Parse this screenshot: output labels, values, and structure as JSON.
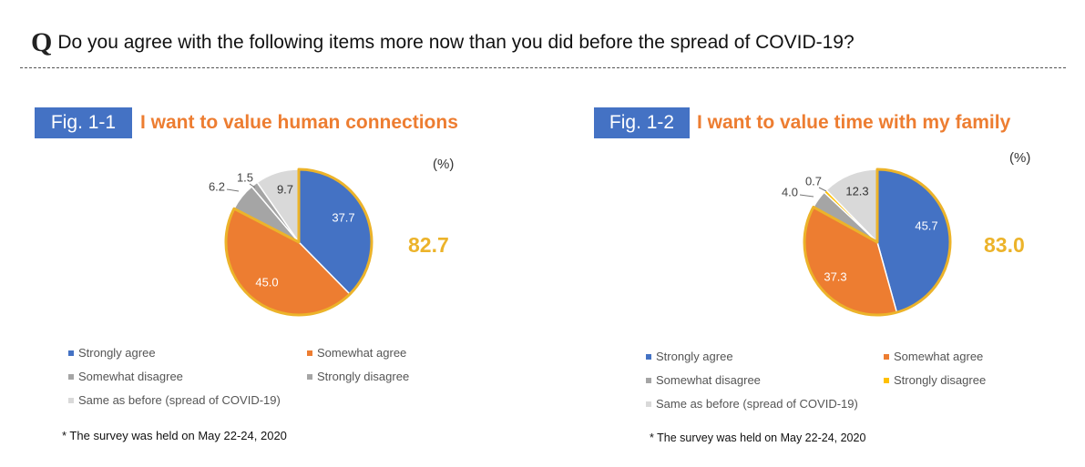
{
  "question": {
    "mark": "Q",
    "text": "Do you agree with the following items more now than you did before the spread of COVID-19?"
  },
  "note": "* The survey was held on May 22-24, 2020",
  "unit": "(%)",
  "legend": [
    {
      "label": "Strongly agree",
      "color": "#4472c4"
    },
    {
      "label": "Somewhat agree",
      "color": "#ed7d31"
    },
    {
      "label": "Somewhat disagree",
      "color": "#a5a5a5"
    },
    {
      "label": "Strongly disagree",
      "color": "#a5a5a5"
    },
    {
      "label": "Same as before (spread of COVID-19)",
      "color": "#d9d9d9"
    }
  ],
  "legend2": [
    {
      "label": "Strongly agree",
      "color": "#4472c4"
    },
    {
      "label": "Somewhat agree",
      "color": "#ed7d31"
    },
    {
      "label": "Somewhat disagree",
      "color": "#a5a5a5"
    },
    {
      "label": "Strongly disagree",
      "color": "#ffc000"
    },
    {
      "label": "Same as before (spread of COVID-19)",
      "color": "#d9d9d9"
    }
  ],
  "highlight_color": "#ecb32a",
  "chart_data": [
    {
      "type": "pie",
      "fig_label": "Fig. 1-1",
      "title": "I want to value human connections",
      "unit": "(%)",
      "total_agree": "82.7",
      "slices": [
        {
          "name": "Strongly agree",
          "value": 37.7,
          "color": "#4472c4"
        },
        {
          "name": "Somewhat agree",
          "value": 45.0,
          "color": "#ed7d31"
        },
        {
          "name": "Somewhat disagree",
          "value": 6.2,
          "color": "#a5a5a5"
        },
        {
          "name": "Strongly disagree",
          "value": 1.5,
          "color": "#a5a5a5"
        },
        {
          "name": "Same as before (spread of COVID-19)",
          "value": 9.7,
          "color": "#d9d9d9"
        }
      ]
    },
    {
      "type": "pie",
      "fig_label": "Fig. 1-2",
      "title": "I want to value time with my family",
      "unit": "(%)",
      "total_agree": "83.0",
      "slices": [
        {
          "name": "Strongly agree",
          "value": 45.7,
          "color": "#4472c4"
        },
        {
          "name": "Somewhat agree",
          "value": 37.3,
          "color": "#ed7d31"
        },
        {
          "name": "Somewhat disagree",
          "value": 4.0,
          "color": "#a5a5a5"
        },
        {
          "name": "Strongly disagree",
          "value": 0.7,
          "color": "#ffc000"
        },
        {
          "name": "Same as before (spread of COVID-19)",
          "value": 12.3,
          "color": "#d9d9d9"
        }
      ]
    }
  ]
}
